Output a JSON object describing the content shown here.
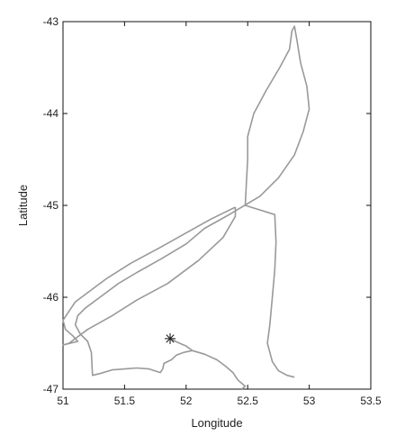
{
  "chart_data": {
    "type": "line",
    "title": "",
    "xlabel": "Longitude",
    "ylabel": "Latitude",
    "xlim": [
      51,
      53.5
    ],
    "ylim": [
      -47,
      -43
    ],
    "x_ticks": [
      51,
      51.5,
      52,
      52.5,
      53,
      53.5
    ],
    "x_tick_labels": [
      "51",
      "51.5",
      "52",
      "52.5",
      "53",
      "53.5"
    ],
    "y_ticks": [
      -47,
      -46,
      -45,
      -44,
      -43
    ],
    "y_tick_labels": [
      "-47",
      "-46",
      "-45",
      "-44",
      "-43"
    ],
    "grid": false,
    "line_color": "#999999",
    "marker_color": "#222222",
    "marker": {
      "type": "asterisk",
      "x": 51.87,
      "y": -46.45
    },
    "series": [
      {
        "points": [
          [
            51.87,
            -46.45
          ],
          [
            51.93,
            -46.49
          ],
          [
            52.0,
            -46.53
          ],
          [
            52.05,
            -46.58
          ],
          [
            51.98,
            -46.6
          ],
          [
            51.92,
            -46.63
          ],
          [
            51.88,
            -46.68
          ],
          [
            51.82,
            -46.72
          ],
          [
            51.81,
            -46.78
          ],
          [
            51.79,
            -46.82
          ],
          [
            51.7,
            -46.78
          ],
          [
            51.6,
            -46.77
          ],
          [
            51.5,
            -46.78
          ],
          [
            51.4,
            -46.79
          ],
          [
            51.3,
            -46.83
          ],
          [
            51.24,
            -46.85
          ],
          [
            51.23,
            -46.6
          ],
          [
            51.2,
            -46.48
          ],
          [
            51.14,
            -46.4
          ],
          [
            51.1,
            -46.3
          ],
          [
            51.12,
            -46.2
          ],
          [
            51.18,
            -46.12
          ],
          [
            51.3,
            -46.0
          ],
          [
            51.45,
            -45.85
          ],
          [
            51.6,
            -45.73
          ],
          [
            51.8,
            -45.58
          ],
          [
            52.0,
            -45.42
          ],
          [
            52.15,
            -45.25
          ],
          [
            52.35,
            -45.1
          ],
          [
            52.6,
            -44.9
          ],
          [
            52.75,
            -44.7
          ],
          [
            52.88,
            -44.45
          ],
          [
            52.95,
            -44.2
          ],
          [
            53.0,
            -43.95
          ],
          [
            52.98,
            -43.7
          ],
          [
            52.93,
            -43.45
          ],
          [
            52.9,
            -43.2
          ],
          [
            52.88,
            -43.05
          ],
          [
            52.86,
            -43.1
          ],
          [
            52.84,
            -43.3
          ],
          [
            52.76,
            -43.5
          ],
          [
            52.65,
            -43.75
          ],
          [
            52.55,
            -44.0
          ],
          [
            52.5,
            -44.25
          ],
          [
            52.5,
            -44.5
          ],
          [
            52.49,
            -44.75
          ],
          [
            52.48,
            -45.0
          ],
          [
            52.6,
            -45.05
          ],
          [
            52.72,
            -45.1
          ],
          [
            52.73,
            -45.4
          ],
          [
            52.72,
            -45.7
          ],
          [
            52.7,
            -46.0
          ],
          [
            52.68,
            -46.3
          ],
          [
            52.66,
            -46.5
          ],
          [
            52.7,
            -46.7
          ],
          [
            52.75,
            -46.8
          ],
          [
            52.82,
            -46.85
          ],
          [
            52.88,
            -46.87
          ]
        ]
      },
      {
        "points": [
          [
            52.4,
            -45.02
          ],
          [
            52.2,
            -45.15
          ],
          [
            52.0,
            -45.3
          ],
          [
            51.8,
            -45.45
          ],
          [
            51.55,
            -45.63
          ],
          [
            51.35,
            -45.8
          ],
          [
            51.2,
            -45.95
          ],
          [
            51.1,
            -46.05
          ],
          [
            51.05,
            -46.15
          ],
          [
            51.0,
            -46.25
          ],
          [
            51.02,
            -46.35
          ],
          [
            51.08,
            -46.42
          ],
          [
            51.12,
            -46.48
          ],
          [
            51.0,
            -46.52
          ],
          [
            51.05,
            -46.5
          ],
          [
            51.2,
            -46.35
          ],
          [
            51.4,
            -46.2
          ],
          [
            51.6,
            -46.03
          ],
          [
            51.85,
            -45.85
          ],
          [
            52.1,
            -45.6
          ],
          [
            52.3,
            -45.35
          ],
          [
            52.4,
            -45.12
          ],
          [
            52.4,
            -45.02
          ]
        ]
      },
      {
        "points": [
          [
            52.05,
            -46.58
          ],
          [
            52.15,
            -46.62
          ],
          [
            52.25,
            -46.68
          ],
          [
            52.32,
            -46.75
          ],
          [
            52.38,
            -46.82
          ],
          [
            52.42,
            -46.9
          ],
          [
            52.48,
            -46.97
          ],
          [
            52.45,
            -47.0
          ]
        ]
      }
    ]
  }
}
